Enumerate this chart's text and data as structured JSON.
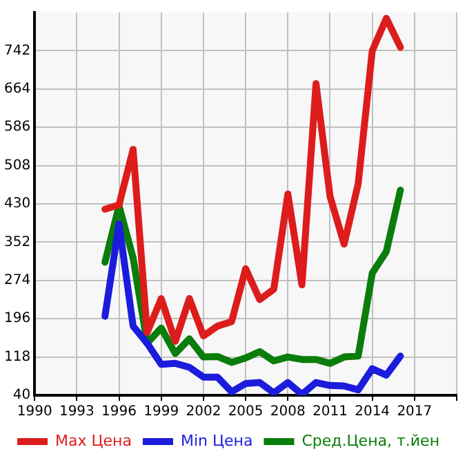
{
  "chart_data": {
    "type": "line",
    "x": [
      1995,
      1996,
      1997,
      1998,
      1999,
      2000,
      2001,
      2002,
      2003,
      2004,
      2005,
      2006,
      2007,
      2008,
      2009,
      2010,
      2011,
      2012,
      2013,
      2014,
      2015,
      2016
    ],
    "series": [
      {
        "name": "Max Цена",
        "color": "#dd1c1c",
        "values": [
          419,
          428,
          541,
          168,
          237,
          150,
          237,
          161,
          181,
          190,
          298,
          235,
          256,
          450,
          265,
          675,
          445,
          348,
          471,
          742,
          808,
          749
        ]
      },
      {
        "name": "Min Цена",
        "color": "#1c1cdd",
        "values": [
          201,
          389,
          181,
          146,
          103,
          105,
          97,
          77,
          77,
          47,
          64,
          66,
          45,
          66,
          42,
          66,
          60,
          59,
          51,
          94,
          81,
          120
        ]
      },
      {
        "name": "Сред.Цена, т.йен",
        "color": "#0a7d0a",
        "values": [
          311,
          426,
          320,
          146,
          177,
          125,
          155,
          118,
          119,
          107,
          116,
          129,
          110,
          118,
          113,
          113,
          105,
          118,
          120,
          289,
          333,
          458
        ]
      }
    ],
    "xlim": [
      1990,
      2020
    ],
    "xticks": [
      1990,
      1993,
      1996,
      1999,
      2002,
      2005,
      2008,
      2011,
      2014,
      2017,
      {
        "value": 2020,
        "label": null
      }
    ],
    "ylim": [
      40,
      820
    ],
    "yticks": [
      40,
      118,
      196,
      274,
      352,
      430,
      508,
      586,
      664,
      742
    ],
    "grid": true,
    "legend": "bottom",
    "marker": "none",
    "line_style": "solid"
  }
}
